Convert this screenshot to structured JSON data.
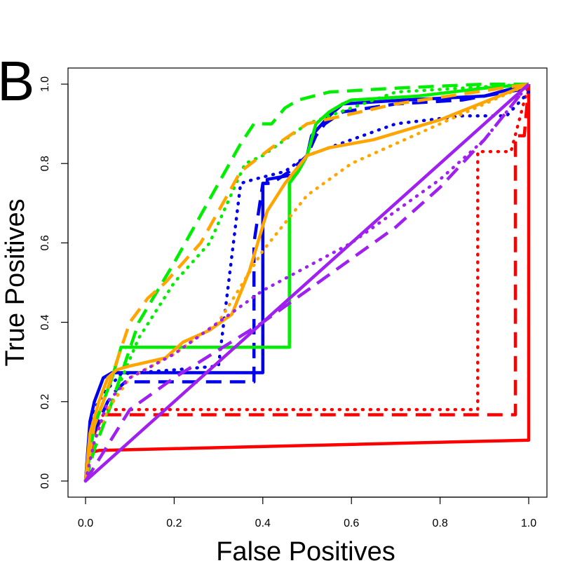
{
  "chart_data": {
    "type": "line",
    "panel_label": "B",
    "xlabel": "False Positives",
    "ylabel": "True Positives",
    "xlim": [
      0,
      1
    ],
    "ylim": [
      0,
      1
    ],
    "x_ticks": [
      "0.0",
      "0.2",
      "0.4",
      "0.6",
      "0.8",
      "1.0"
    ],
    "y_ticks": [
      "0.0",
      "0.2",
      "0.4",
      "0.6",
      "0.8",
      "1.0"
    ],
    "grid": false,
    "legend": "none",
    "colors": {
      "red": "#ff0000",
      "blue": "#0000ee",
      "green": "#00ee00",
      "orange": "#ffa500",
      "purple": "#a020f0"
    },
    "series": [
      {
        "color": "#ff0000",
        "dash": "solid",
        "x": [
          0,
          0.005,
          0.03,
          1.0,
          1.0
        ],
        "y": [
          0,
          0.07,
          0.077,
          0.103,
          1.0
        ]
      },
      {
        "color": "#ff0000",
        "dash": "dashed",
        "x": [
          0,
          0.02,
          0.04,
          0.97,
          0.97,
          0.99,
          1.0
        ],
        "y": [
          0,
          0.12,
          0.167,
          0.167,
          0.87,
          0.87,
          1.0
        ]
      },
      {
        "color": "#ff0000",
        "dash": "dotted",
        "x": [
          0,
          0.02,
          0.05,
          0.885,
          0.885,
          0.96,
          1.0
        ],
        "y": [
          0,
          0.14,
          0.18,
          0.18,
          0.83,
          0.83,
          1.0
        ]
      },
      {
        "color": "#0000ee",
        "dash": "solid",
        "x": [
          0,
          0.01,
          0.02,
          0.04,
          0.06,
          0.4,
          0.4,
          0.41,
          0.41,
          0.46,
          0.47,
          0.5,
          0.51,
          0.55,
          0.58,
          0.72,
          0.9,
          1.0
        ],
        "y": [
          0,
          0.15,
          0.2,
          0.26,
          0.273,
          0.273,
          0.75,
          0.75,
          0.76,
          0.77,
          0.77,
          0.82,
          0.87,
          0.92,
          0.95,
          0.96,
          0.97,
          1.0
        ]
      },
      {
        "color": "#0000ee",
        "dash": "dashed",
        "x": [
          0,
          0.01,
          0.03,
          0.05,
          0.07,
          0.09,
          0.38,
          0.38,
          0.4,
          0.42,
          0.46,
          0.5,
          0.52,
          0.54,
          0.58,
          0.7,
          0.85,
          1.0
        ],
        "y": [
          0,
          0.1,
          0.15,
          0.2,
          0.23,
          0.25,
          0.25,
          0.6,
          0.75,
          0.75,
          0.78,
          0.82,
          0.87,
          0.9,
          0.93,
          0.95,
          0.96,
          0.99
        ]
      },
      {
        "color": "#0000ee",
        "dash": "dotted",
        "x": [
          0,
          0.01,
          0.02,
          0.04,
          0.08,
          0.2,
          0.3,
          0.35,
          0.38,
          0.45,
          0.5,
          0.7,
          0.85,
          0.95,
          1.0
        ],
        "y": [
          0,
          0.12,
          0.18,
          0.22,
          0.27,
          0.28,
          0.29,
          0.75,
          0.76,
          0.78,
          0.82,
          0.9,
          0.92,
          0.92,
          0.98
        ]
      },
      {
        "color": "#00ee00",
        "dash": "solid",
        "x": [
          0,
          0.02,
          0.04,
          0.06,
          0.08,
          0.46,
          0.46,
          0.48,
          0.5,
          0.52,
          0.55,
          0.58,
          0.6,
          0.75,
          0.9,
          1.0
        ],
        "y": [
          0,
          0.14,
          0.2,
          0.26,
          0.337,
          0.337,
          0.75,
          0.78,
          0.82,
          0.9,
          0.93,
          0.95,
          0.96,
          0.97,
          0.99,
          1.0
        ]
      },
      {
        "color": "#00ee00",
        "dash": "dashed",
        "x": [
          0,
          0.02,
          0.06,
          0.12,
          0.2,
          0.3,
          0.35,
          0.38,
          0.42,
          0.45,
          0.48,
          0.55,
          0.7,
          0.9,
          1.0
        ],
        "y": [
          0,
          0.08,
          0.2,
          0.4,
          0.55,
          0.75,
          0.85,
          0.9,
          0.9,
          0.94,
          0.96,
          0.98,
          0.99,
          1.0,
          1.0
        ]
      },
      {
        "color": "#00ee00",
        "dash": "dotted",
        "x": [
          0,
          0.02,
          0.06,
          0.12,
          0.2,
          0.28,
          0.32,
          0.36,
          0.4,
          0.45,
          0.5,
          0.7,
          1.0
        ],
        "y": [
          0,
          0.1,
          0.2,
          0.36,
          0.5,
          0.6,
          0.7,
          0.8,
          0.82,
          0.86,
          0.9,
          0.98,
          1.0
        ]
      },
      {
        "color": "#ffa500",
        "dash": "solid",
        "x": [
          0,
          0.01,
          0.03,
          0.05,
          0.07,
          0.1,
          0.18,
          0.22,
          0.28,
          0.33,
          0.37,
          0.41,
          0.45,
          0.5,
          0.55,
          0.65,
          0.8,
          1.0
        ],
        "y": [
          0,
          0.12,
          0.2,
          0.26,
          0.28,
          0.29,
          0.31,
          0.35,
          0.38,
          0.42,
          0.53,
          0.68,
          0.75,
          0.82,
          0.84,
          0.86,
          0.91,
          1.0
        ]
      },
      {
        "color": "#ffa500",
        "dash": "dashed",
        "x": [
          0,
          0.02,
          0.04,
          0.07,
          0.1,
          0.14,
          0.18,
          0.22,
          0.26,
          0.3,
          0.35,
          0.42,
          0.5,
          0.7,
          1.0
        ],
        "y": [
          0,
          0.14,
          0.2,
          0.3,
          0.4,
          0.46,
          0.5,
          0.55,
          0.6,
          0.68,
          0.78,
          0.84,
          0.9,
          0.95,
          1.0
        ]
      },
      {
        "color": "#ffa500",
        "dash": "dotted",
        "x": [
          0,
          0.02,
          0.05,
          0.1,
          0.2,
          0.3,
          0.4,
          0.5,
          0.6,
          0.8,
          1.0
        ],
        "y": [
          0,
          0.1,
          0.18,
          0.26,
          0.32,
          0.4,
          0.58,
          0.72,
          0.8,
          0.9,
          1.0
        ]
      },
      {
        "color": "#a020f0",
        "dash": "solid",
        "x": [
          0,
          1
        ],
        "y": [
          0,
          1
        ]
      },
      {
        "color": "#a020f0",
        "dash": "dashed",
        "x": [
          0,
          0.1,
          0.2,
          0.3,
          0.4,
          0.5,
          0.6,
          0.7,
          0.8,
          0.9,
          1.0
        ],
        "y": [
          0,
          0.18,
          0.26,
          0.33,
          0.4,
          0.48,
          0.56,
          0.64,
          0.74,
          0.86,
          1.0
        ]
      },
      {
        "color": "#a020f0",
        "dash": "dotted",
        "x": [
          0,
          0.02,
          0.05,
          0.1,
          0.2,
          0.3,
          0.4,
          0.5,
          0.6,
          0.7,
          0.8,
          0.9,
          1.0
        ],
        "y": [
          0,
          0.1,
          0.2,
          0.26,
          0.32,
          0.4,
          0.48,
          0.54,
          0.6,
          0.68,
          0.76,
          0.86,
          1.0
        ]
      }
    ]
  }
}
